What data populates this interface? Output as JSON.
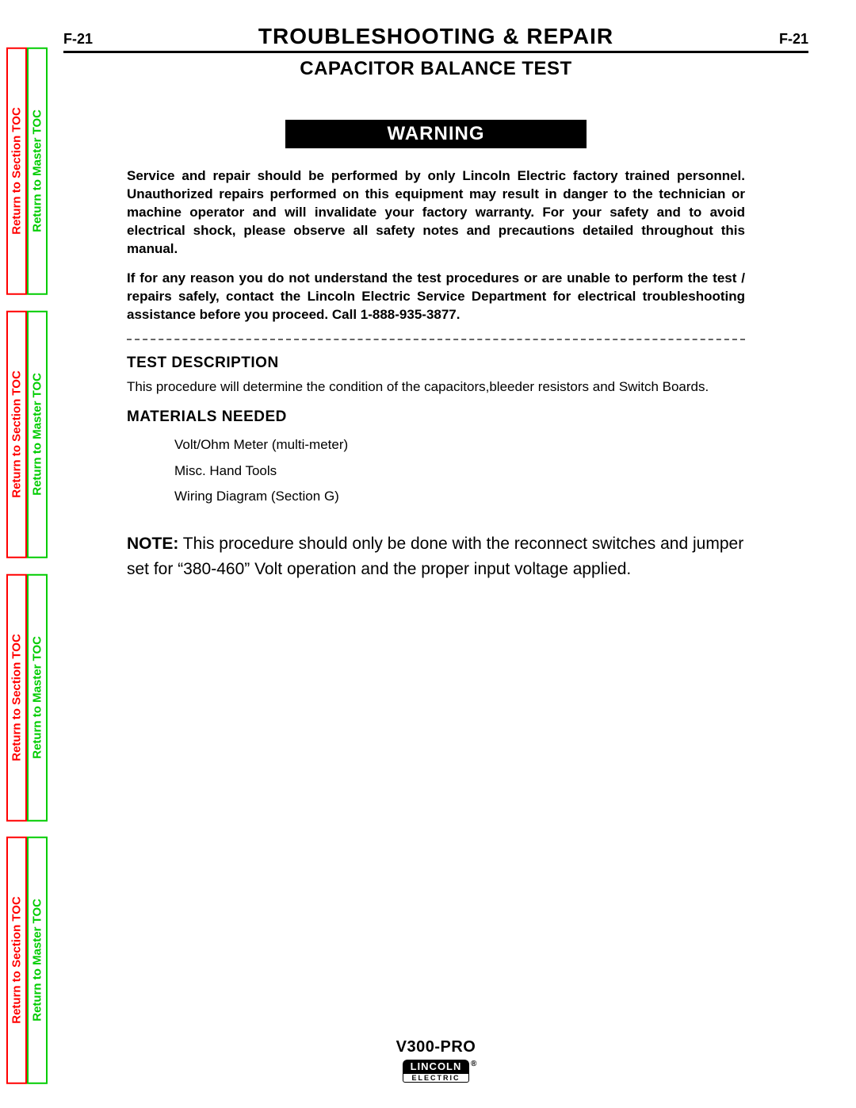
{
  "header": {
    "page_left": "F-21",
    "page_right": "F-21",
    "title": "TROUBLESHOOTING & REPAIR"
  },
  "subtitle": "CAPACITOR BALANCE TEST",
  "warning_label": "WARNING",
  "warning_paragraphs": [
    "Service and repair should be performed by only Lincoln Electric factory trained personnel. Unauthorized repairs performed on this equipment may result in danger to the technician or machine operator and will invalidate your factory warranty.  For your safety and to avoid electrical shock, please observe all safety notes and precautions detailed throughout this manual.",
    "If for any reason you do not understand the test procedures or are unable to perform the test / repairs safely, contact the Lincoln Electric Service Department for electrical troubleshooting assistance before you proceed.  Call 1-888-935-3877."
  ],
  "sections": {
    "test_description": {
      "heading": "TEST DESCRIPTION",
      "text": "This procedure will determine the condition of the capacitors,bleeder resistors and Switch Boards."
    },
    "materials": {
      "heading": "MATERIALS NEEDED",
      "items": [
        "Volt/Ohm Meter (multi-meter)",
        "Misc. Hand Tools",
        "Wiring Diagram (Section G)"
      ]
    }
  },
  "note": {
    "label": "NOTE:",
    "text": "  This procedure should only be done with the reconnect switches and jumper set for “380-460” Volt operation and the proper input voltage applied."
  },
  "footer": {
    "model": "V300-PRO",
    "logo_top": "LINCOLN",
    "logo_reg": "®",
    "logo_bottom": "ELECTRIC"
  },
  "side_tabs": {
    "section_label": "Return to Section TOC",
    "master_label": "Return to Master TOC"
  },
  "colors": {
    "tab_red": "#ff0000",
    "tab_green": "#00cc00",
    "text": "#000000",
    "background": "#ffffff",
    "dash": "#666666"
  }
}
